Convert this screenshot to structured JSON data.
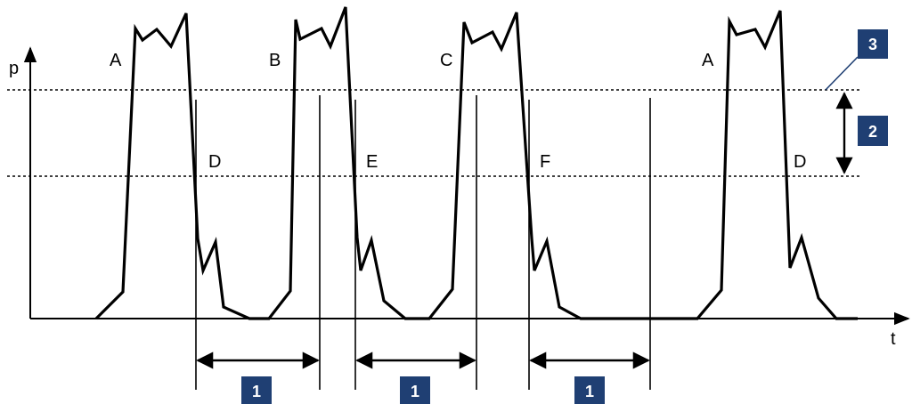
{
  "axes": {
    "y_label": "p",
    "x_label": "t"
  },
  "pulse_labels": [
    "A",
    "B",
    "C",
    "A"
  ],
  "fall_labels": [
    "D",
    "E",
    "F",
    "D"
  ],
  "markers": {
    "interval": "1",
    "band": "2",
    "threshold": "3"
  },
  "colors": {
    "line": "#000000",
    "badge": "#1f3f73",
    "badge_text": "#ffffff",
    "background": "#ffffff"
  }
}
